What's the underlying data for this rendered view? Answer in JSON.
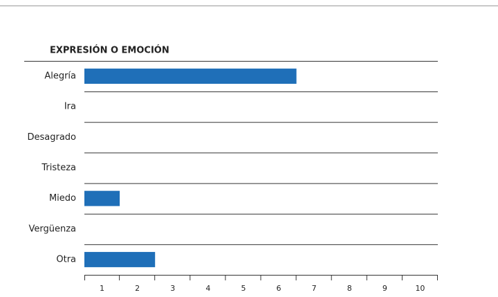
{
  "chart_data": {
    "type": "hbar",
    "title": "EXPRESIÓN O EMOCIÓN",
    "categories": [
      "Alegría",
      "Ira",
      "Desagrado",
      "Tristeza",
      "Miedo",
      "Vergüenza",
      "Otra"
    ],
    "values": [
      6,
      0,
      0,
      0,
      1,
      0,
      2
    ],
    "color": "#1f6fb8",
    "xlim": [
      0,
      10
    ],
    "xticks": [
      1,
      2,
      3,
      4,
      5,
      6,
      7,
      8,
      9,
      10
    ]
  }
}
